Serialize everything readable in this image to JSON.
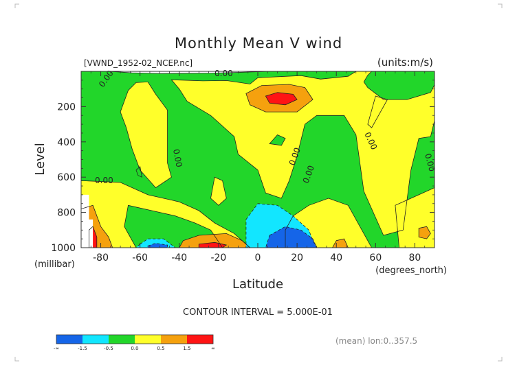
{
  "chart_data": {
    "type": "heatmap",
    "title": "Monthly Mean V wind",
    "source_label": "[VWND_1952-02_NCEP.nc]",
    "units_label": "(units:m/s)",
    "xlabel": "Latitude",
    "xunit_label": "(degrees_north)",
    "ylabel": "Level",
    "yunit_label": "(millibar)",
    "xlim": [
      -90,
      90
    ],
    "ylim": [
      1000,
      0
    ],
    "x_ticks": [
      -80,
      -60,
      -40,
      -20,
      0,
      20,
      40,
      60,
      80
    ],
    "x_tick_labels": [
      "-80",
      "-60",
      "-40",
      "-20",
      "0",
      "20",
      "40",
      "60",
      "80"
    ],
    "y_ticks": [
      200,
      400,
      600,
      800,
      1000
    ],
    "y_tick_labels": [
      "200",
      "400",
      "600",
      "800",
      "1000"
    ],
    "contour_interval_text": "CONTOUR INTERVAL = 5.000E-01",
    "contour_labels": [
      "0.00",
      "0.00",
      "0.00",
      "0.00",
      "0.00",
      "0.00",
      "0.00",
      "0.00"
    ],
    "footer_text": "(mean) lon:0..357.5",
    "legend": {
      "colors": [
        "#1565e8",
        "#12e6ff",
        "#22d62a",
        "#ffff2a",
        "#f5a10e",
        "#ff1414"
      ],
      "labels": [
        "-∞",
        "-1.5",
        "-0.5",
        "0.0",
        "0.5",
        "1.5",
        "∞"
      ]
    },
    "regions": [
      {
        "level": "negative",
        "color": "#22d62a",
        "points": [
          [
            -90,
            0
          ],
          [
            -76,
            0
          ],
          [
            -64,
            8
          ],
          [
            -50,
            12
          ],
          [
            -24,
            10
          ],
          [
            -10,
            6
          ],
          [
            6,
            0
          ],
          [
            90,
            0
          ],
          [
            90,
            1000
          ],
          [
            -90,
            1000
          ]
        ]
      },
      {
        "level": "positive",
        "color": "#ffff2a",
        "points": [
          [
            -66,
            108
          ],
          [
            -62,
            64
          ],
          [
            -56,
            60
          ],
          [
            -52,
            130
          ],
          [
            -46,
            220
          ],
          [
            -46,
            520
          ],
          [
            -44,
            600
          ],
          [
            -52,
            660
          ],
          [
            -60,
            560
          ],
          [
            -64,
            440
          ],
          [
            -67,
            320
          ],
          [
            -70,
            230
          ]
        ]
      },
      {
        "level": "positive",
        "color": "#ffff2a",
        "points": [
          [
            -44,
            48
          ],
          [
            -28,
            54
          ],
          [
            -16,
            52
          ],
          [
            -4,
            72
          ],
          [
            0,
            36
          ],
          [
            22,
            24
          ],
          [
            32,
            44
          ],
          [
            46,
            28
          ],
          [
            50,
            0
          ],
          [
            58,
            0
          ],
          [
            56,
            22
          ],
          [
            54,
            60
          ],
          [
            56,
            92
          ],
          [
            64,
            160
          ],
          [
            76,
            160
          ],
          [
            88,
            120
          ],
          [
            90,
            76
          ],
          [
            90,
            280
          ],
          [
            88,
            370
          ],
          [
            82,
            380
          ],
          [
            78,
            560
          ],
          [
            74,
            900
          ],
          [
            64,
            930
          ],
          [
            54,
            680
          ],
          [
            50,
            360
          ],
          [
            44,
            250
          ],
          [
            30,
            250
          ],
          [
            24,
            300
          ],
          [
            20,
            480
          ],
          [
            16,
            620
          ],
          [
            12,
            720
          ],
          [
            4,
            690
          ],
          [
            0,
            560
          ],
          [
            -10,
            470
          ],
          [
            -12,
            370
          ],
          [
            -24,
            250
          ],
          [
            -36,
            170
          ],
          [
            -40,
            100
          ]
        ]
      },
      {
        "level": "positive",
        "color": "#ffff2a",
        "points": [
          [
            60,
            140
          ],
          [
            66,
            160
          ],
          [
            58,
            320
          ],
          [
            56,
            300
          ]
        ]
      },
      {
        "level": "positive",
        "color": "#ffff2a",
        "points": [
          [
            -22,
            600
          ],
          [
            -18,
            620
          ],
          [
            -16,
            720
          ],
          [
            -20,
            760
          ],
          [
            -24,
            720
          ]
        ]
      },
      {
        "level": "positive",
        "color": "#ffff2a",
        "points": [
          [
            -90,
            620
          ],
          [
            -70,
            630
          ],
          [
            -56,
            700
          ],
          [
            -40,
            740
          ],
          [
            -30,
            790
          ],
          [
            -22,
            860
          ],
          [
            -12,
            920
          ],
          [
            -4,
            1000
          ],
          [
            -90,
            1000
          ]
        ]
      },
      {
        "level": "positive",
        "color": "#ffff2a",
        "points": [
          [
            18,
            820
          ],
          [
            26,
            760
          ],
          [
            36,
            720
          ],
          [
            46,
            760
          ],
          [
            52,
            880
          ],
          [
            58,
            1000
          ],
          [
            14,
            1000
          ],
          [
            14,
            900
          ]
        ]
      },
      {
        "level": "positive",
        "color": "#ffff2a",
        "points": [
          [
            70,
            760
          ],
          [
            82,
            700
          ],
          [
            90,
            660
          ],
          [
            90,
            1000
          ],
          [
            72,
            1000
          ]
        ]
      },
      {
        "level": "negative",
        "color": "#22d62a",
        "points": [
          [
            -66,
            760
          ],
          [
            -54,
            790
          ],
          [
            -42,
            820
          ],
          [
            -32,
            860
          ],
          [
            -24,
            900
          ],
          [
            -18,
            1000
          ],
          [
            -62,
            1000
          ],
          [
            -68,
            880
          ]
        ]
      },
      {
        "level": "negative",
        "color": "#22d62a",
        "points": [
          [
            10,
            360
          ],
          [
            14,
            380
          ],
          [
            12,
            420
          ],
          [
            6,
            410
          ]
        ]
      },
      {
        "level": "negative",
        "color": "#22d62a",
        "points": [
          [
            -62,
            560
          ],
          [
            -60,
            540
          ],
          [
            -59,
            600
          ],
          [
            -61,
            590
          ]
        ]
      },
      {
        "level": "positive",
        "color": "#f5a10e",
        "points": [
          [
            -6,
            126
          ],
          [
            2,
            80
          ],
          [
            16,
            74
          ],
          [
            24,
            92
          ],
          [
            28,
            160
          ],
          [
            20,
            230
          ],
          [
            4,
            230
          ],
          [
            -4,
            190
          ]
        ]
      },
      {
        "level": "high",
        "color": "#ff1414",
        "points": [
          [
            4,
            140
          ],
          [
            10,
            120
          ],
          [
            18,
            130
          ],
          [
            20,
            160
          ],
          [
            14,
            190
          ],
          [
            6,
            180
          ]
        ]
      },
      {
        "level": "positive",
        "color": "#f5a10e",
        "points": [
          [
            -90,
            780
          ],
          [
            -84,
            760
          ],
          [
            -80,
            880
          ],
          [
            -76,
            940
          ],
          [
            -74,
            1000
          ],
          [
            -90,
            1000
          ]
        ]
      },
      {
        "level": "high",
        "color": "#ff1414",
        "points": [
          [
            -86,
            900
          ],
          [
            -84,
            880
          ],
          [
            -82,
            940
          ],
          [
            -82,
            1000
          ],
          [
            -86,
            1000
          ]
        ]
      },
      {
        "level": "positive",
        "color": "#f5a10e",
        "points": [
          [
            -38,
            960
          ],
          [
            -30,
            930
          ],
          [
            -16,
            920
          ],
          [
            -8,
            960
          ],
          [
            -4,
            1000
          ],
          [
            -40,
            1000
          ]
        ]
      },
      {
        "level": "high",
        "color": "#ff1414",
        "points": [
          [
            -30,
            980
          ],
          [
            -22,
            970
          ],
          [
            -16,
            985
          ],
          [
            -18,
            1000
          ],
          [
            -30,
            1000
          ]
        ]
      },
      {
        "level": "positive",
        "color": "#f5a10e",
        "points": [
          [
            40,
            960
          ],
          [
            44,
            950
          ],
          [
            46,
            1000
          ],
          [
            38,
            1000
          ]
        ]
      },
      {
        "level": "positive",
        "color": "#f5a10e",
        "points": [
          [
            82,
            890
          ],
          [
            86,
            880
          ],
          [
            88,
            920
          ],
          [
            86,
            950
          ],
          [
            82,
            940
          ]
        ]
      },
      {
        "level": "negative",
        "color": "#12e6ff",
        "points": [
          [
            -6,
            840
          ],
          [
            0,
            750
          ],
          [
            10,
            760
          ],
          [
            18,
            820
          ],
          [
            26,
            900
          ],
          [
            28,
            960
          ],
          [
            30,
            1000
          ],
          [
            -6,
            1000
          ]
        ]
      },
      {
        "level": "low",
        "color": "#1565e8",
        "points": [
          [
            6,
            930
          ],
          [
            14,
            880
          ],
          [
            22,
            900
          ],
          [
            28,
            950
          ],
          [
            30,
            1000
          ],
          [
            4,
            1000
          ]
        ]
      },
      {
        "level": "negative",
        "color": "#12e6ff",
        "points": [
          [
            -60,
            980
          ],
          [
            -56,
            950
          ],
          [
            -48,
            950
          ],
          [
            -42,
            1000
          ],
          [
            -62,
            1000
          ]
        ]
      },
      {
        "level": "low",
        "color": "#1565e8",
        "points": [
          [
            -56,
            990
          ],
          [
            -52,
            975
          ],
          [
            -46,
            985
          ],
          [
            -46,
            1000
          ],
          [
            -56,
            1000
          ]
        ]
      },
      {
        "level": "missing",
        "color": "#ffffff",
        "points": [
          [
            -90,
            700
          ],
          [
            -86,
            700
          ],
          [
            -86,
            840
          ],
          [
            -84,
            840
          ],
          [
            -84,
            1000
          ],
          [
            -90,
            1000
          ]
        ]
      }
    ]
  }
}
